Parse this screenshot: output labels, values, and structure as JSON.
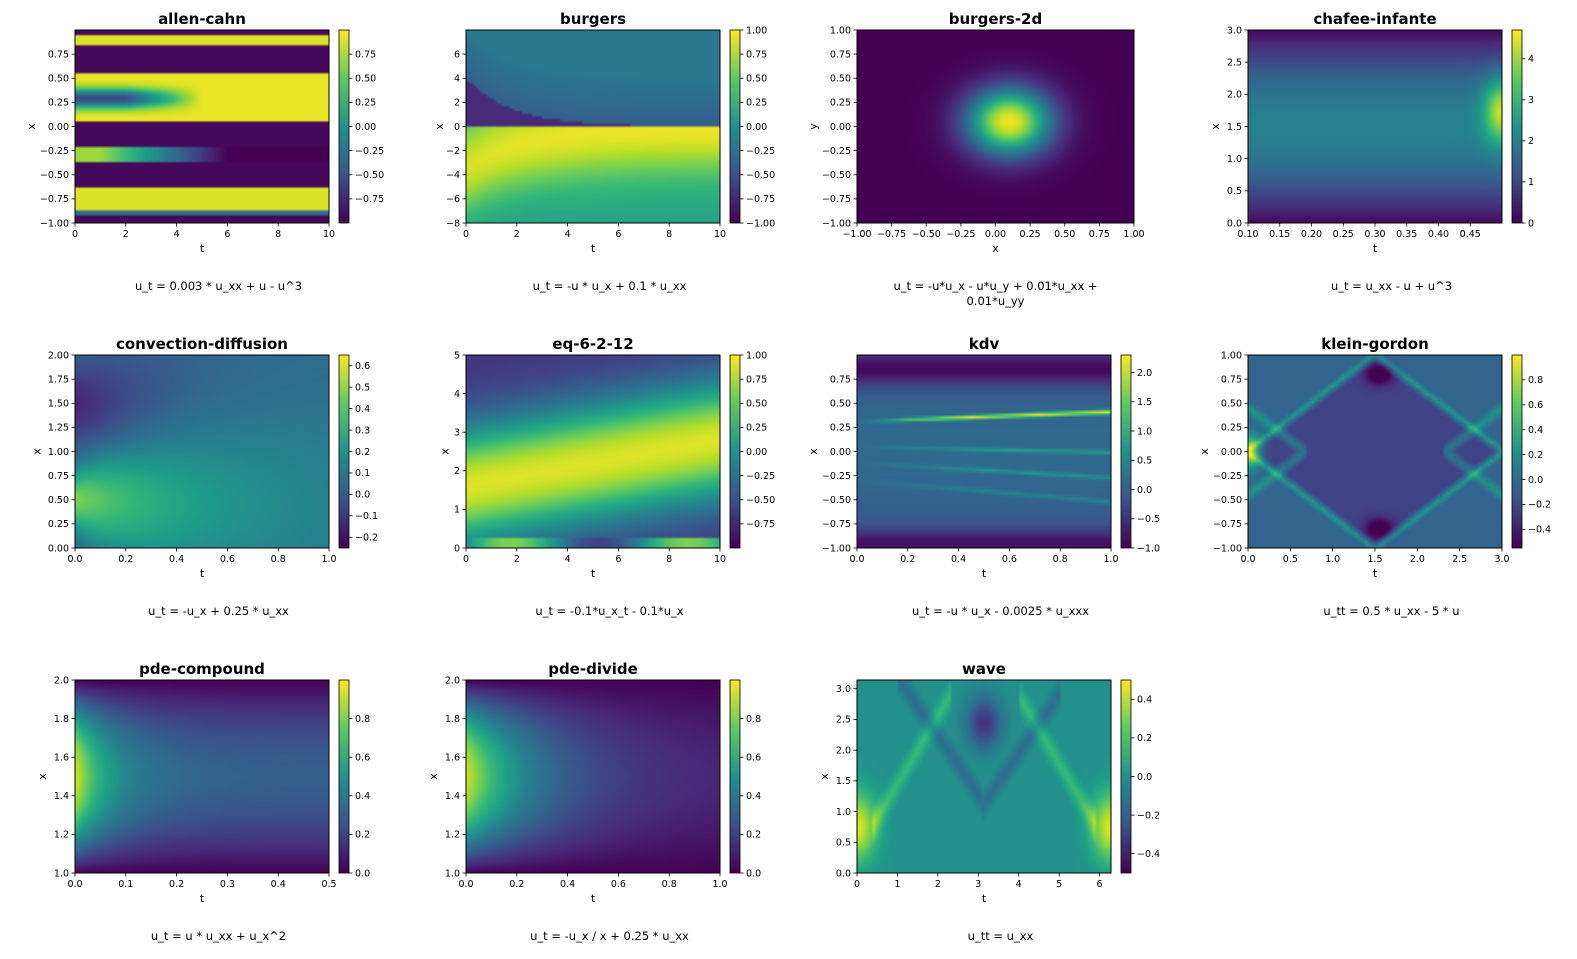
{
  "colormap": "viridis",
  "colors": {
    "viridis": [
      "#440154",
      "#3b528b",
      "#21918c",
      "#5ec962",
      "#fde725"
    ]
  },
  "chart_data": [
    {
      "type": "heatmap",
      "title": "allen-cahn",
      "xlabel": "t",
      "ylabel": "x",
      "xlim": [
        0,
        10
      ],
      "ylim": [
        -1,
        1
      ],
      "xticks": [
        "0",
        "2",
        "4",
        "6",
        "8",
        "10"
      ],
      "xtick_values": [
        0,
        2,
        4,
        6,
        8,
        10
      ],
      "yticks": [
        "−1.00",
        "−0.75",
        "−0.50",
        "−0.25",
        "0.00",
        "0.25",
        "0.50",
        "0.75"
      ],
      "ytick_values": [
        -1,
        -0.75,
        -0.5,
        -0.25,
        0,
        0.25,
        0.5,
        0.75
      ],
      "colorbar_ticks": [
        "−0.75",
        "−0.50",
        "−0.25",
        "0.00",
        "0.25",
        "0.50",
        "0.75"
      ],
      "colorbar_values": [
        -0.75,
        -0.5,
        -0.25,
        0,
        0.25,
        0.5,
        0.75
      ],
      "clim": [
        -1,
        1
      ],
      "equation": [
        "u_t = 0.003 * u_xx + u - u^3"
      ]
    },
    {
      "type": "heatmap",
      "title": "burgers",
      "xlabel": "t",
      "ylabel": "x",
      "xlim": [
        0,
        10
      ],
      "ylim": [
        -8,
        8
      ],
      "xticks": [
        "0",
        "2",
        "4",
        "6",
        "8",
        "10"
      ],
      "xtick_values": [
        0,
        2,
        4,
        6,
        8,
        10
      ],
      "yticks": [
        "−8",
        "−6",
        "−4",
        "−2",
        "0",
        "2",
        "4",
        "6"
      ],
      "ytick_values": [
        -8,
        -6,
        -4,
        -2,
        0,
        2,
        4,
        6
      ],
      "colorbar_ticks": [
        "−1.00",
        "−0.75",
        "−0.50",
        "−0.25",
        "0.00",
        "0.25",
        "0.50",
        "0.75",
        "1.00"
      ],
      "colorbar_values": [
        -1,
        -0.75,
        -0.5,
        -0.25,
        0,
        0.25,
        0.5,
        0.75,
        1
      ],
      "clim": [
        -1,
        1
      ],
      "equation": [
        "u_t = -u * u_x + 0.1 * u_xx"
      ]
    },
    {
      "type": "heatmap",
      "title": "burgers-2d",
      "xlabel": "x",
      "ylabel": "y",
      "xlim": [
        -1,
        1
      ],
      "ylim": [
        -1,
        1
      ],
      "xticks": [
        "−1.00",
        "−0.75",
        "−0.50",
        "−0.25",
        "0.00",
        "0.25",
        "0.50",
        "0.75",
        "1.00"
      ],
      "xtick_values": [
        -1,
        -0.75,
        -0.5,
        -0.25,
        0,
        0.25,
        0.5,
        0.75,
        1
      ],
      "yticks": [
        "−1.00",
        "−0.75",
        "−0.50",
        "−0.25",
        "0.00",
        "0.25",
        "0.50",
        "0.75",
        "1.00"
      ],
      "ytick_values": [
        -1,
        -0.75,
        -0.5,
        -0.25,
        0,
        0.25,
        0.5,
        0.75,
        1
      ],
      "colorbar_ticks": [],
      "colorbar_values": [],
      "clim": [
        0,
        1
      ],
      "equation": [
        "u_t = -u*u_x - u*u_y + 0.01*u_xx +",
        "0.01*u_yy"
      ]
    },
    {
      "type": "heatmap",
      "title": "chafee-infante",
      "xlabel": "t",
      "ylabel": "x",
      "xlim": [
        0.1,
        0.5
      ],
      "ylim": [
        0,
        3
      ],
      "xticks": [
        "0.10",
        "0.15",
        "0.20",
        "0.25",
        "0.30",
        "0.35",
        "0.40",
        "0.45"
      ],
      "xtick_values": [
        0.1,
        0.15,
        0.2,
        0.25,
        0.3,
        0.35,
        0.4,
        0.45
      ],
      "yticks": [
        "0.0",
        "0.5",
        "1.0",
        "1.5",
        "2.0",
        "2.5",
        "3.0"
      ],
      "ytick_values": [
        0,
        0.5,
        1,
        1.5,
        2,
        2.5,
        3
      ],
      "colorbar_ticks": [
        "0",
        "1",
        "2",
        "3",
        "4"
      ],
      "colorbar_values": [
        0,
        1,
        2,
        3,
        4
      ],
      "clim": [
        0,
        4.7
      ],
      "equation": [
        "u_t = u_xx - u + u^3"
      ]
    },
    {
      "type": "heatmap",
      "title": "convection-diffusion",
      "xlabel": "t",
      "ylabel": "x",
      "xlim": [
        0,
        1
      ],
      "ylim": [
        0,
        2
      ],
      "xticks": [
        "0.0",
        "0.2",
        "0.4",
        "0.6",
        "0.8",
        "1.0"
      ],
      "xtick_values": [
        0,
        0.2,
        0.4,
        0.6,
        0.8,
        1
      ],
      "yticks": [
        "0.00",
        "0.25",
        "0.50",
        "0.75",
        "1.00",
        "1.25",
        "1.50",
        "1.75",
        "2.00"
      ],
      "ytick_values": [
        0,
        0.25,
        0.5,
        0.75,
        1,
        1.25,
        1.5,
        1.75,
        2
      ],
      "colorbar_ticks": [
        "−0.2",
        "−0.1",
        "0.0",
        "0.1",
        "0.2",
        "0.3",
        "0.4",
        "0.5",
        "0.6"
      ],
      "colorbar_values": [
        -0.2,
        -0.1,
        0,
        0.1,
        0.2,
        0.3,
        0.4,
        0.5,
        0.6
      ],
      "clim": [
        -0.25,
        0.65
      ],
      "equation": [
        "u_t = -u_x + 0.25 * u_xx"
      ]
    },
    {
      "type": "heatmap",
      "title": "eq-6-2-12",
      "xlabel": "t",
      "ylabel": "x",
      "xlim": [
        0,
        10
      ],
      "ylim": [
        0,
        5
      ],
      "xticks": [
        "0",
        "2",
        "4",
        "6",
        "8",
        "10"
      ],
      "xtick_values": [
        0,
        2,
        4,
        6,
        8,
        10
      ],
      "yticks": [
        "0",
        "1",
        "2",
        "3",
        "4",
        "5"
      ],
      "ytick_values": [
        0,
        1,
        2,
        3,
        4,
        5
      ],
      "colorbar_ticks": [
        "−0.75",
        "−0.50",
        "−0.25",
        "0.00",
        "0.25",
        "0.50",
        "0.75",
        "1.00"
      ],
      "colorbar_values": [
        -0.75,
        -0.5,
        -0.25,
        0,
        0.25,
        0.5,
        0.75,
        1
      ],
      "clim": [
        -1,
        1
      ],
      "equation": [
        "u_t = -0.1*u_x_t - 0.1*u_x"
      ]
    },
    {
      "type": "heatmap",
      "title": "kdv",
      "xlabel": "t",
      "ylabel": "x",
      "xlim": [
        0,
        1
      ],
      "ylim": [
        -1,
        1
      ],
      "xticks": [
        "0.0",
        "0.2",
        "0.4",
        "0.6",
        "0.8",
        "1.0"
      ],
      "xtick_values": [
        0,
        0.2,
        0.4,
        0.6,
        0.8,
        1
      ],
      "yticks": [
        "−1.00",
        "−0.75",
        "−0.50",
        "−0.25",
        "0.00",
        "0.25",
        "0.50",
        "0.75"
      ],
      "ytick_values": [
        -1,
        -0.75,
        -0.5,
        -0.25,
        0,
        0.25,
        0.5,
        0.75
      ],
      "colorbar_ticks": [
        "−1.0",
        "−0.5",
        "0.0",
        "0.5",
        "1.0",
        "1.5",
        "2.0"
      ],
      "colorbar_values": [
        -1,
        -0.5,
        0,
        0.5,
        1,
        1.5,
        2
      ],
      "clim": [
        -1,
        2.3
      ],
      "equation": [
        "u_t = -u * u_x - 0.0025 * u_xxx"
      ]
    },
    {
      "type": "heatmap",
      "title": "klein-gordon",
      "xlabel": "t",
      "ylabel": "x",
      "xlim": [
        0,
        3
      ],
      "ylim": [
        -1,
        1
      ],
      "xticks": [
        "0.0",
        "0.5",
        "1.0",
        "1.5",
        "2.0",
        "2.5",
        "3.0"
      ],
      "xtick_values": [
        0,
        0.5,
        1,
        1.5,
        2,
        2.5,
        3
      ],
      "yticks": [
        "−1.00",
        "−0.75",
        "−0.50",
        "−0.25",
        "0.00",
        "0.25",
        "0.50",
        "0.75",
        "1.00"
      ],
      "ytick_values": [
        -1,
        -0.75,
        -0.5,
        -0.25,
        0,
        0.25,
        0.5,
        0.75,
        1
      ],
      "colorbar_ticks": [
        "−0.4",
        "−0.2",
        "0.0",
        "0.2",
        "0.4",
        "0.6",
        "0.8"
      ],
      "colorbar_values": [
        -0.4,
        -0.2,
        0,
        0.2,
        0.4,
        0.6,
        0.8
      ],
      "clim": [
        -0.55,
        1
      ],
      "equation": [
        "u_tt = 0.5 * u_xx - 5 * u"
      ]
    },
    {
      "type": "heatmap",
      "title": "pde-compound",
      "xlabel": "t",
      "ylabel": "x",
      "xlim": [
        0,
        0.5
      ],
      "ylim": [
        1,
        2
      ],
      "xticks": [
        "0.0",
        "0.1",
        "0.2",
        "0.3",
        "0.4",
        "0.5"
      ],
      "xtick_values": [
        0,
        0.1,
        0.2,
        0.3,
        0.4,
        0.5
      ],
      "yticks": [
        "1.0",
        "1.2",
        "1.4",
        "1.6",
        "1.8",
        "2.0"
      ],
      "ytick_values": [
        1,
        1.2,
        1.4,
        1.6,
        1.8,
        2
      ],
      "colorbar_ticks": [
        "0.0",
        "0.2",
        "0.4",
        "0.6",
        "0.8"
      ],
      "colorbar_values": [
        0,
        0.2,
        0.4,
        0.6,
        0.8
      ],
      "clim": [
        0,
        1
      ],
      "equation": [
        "u_t = u * u_xx + u_x^2"
      ]
    },
    {
      "type": "heatmap",
      "title": "pde-divide",
      "xlabel": "t",
      "ylabel": "x",
      "xlim": [
        0,
        1
      ],
      "ylim": [
        1,
        2
      ],
      "xticks": [
        "0.0",
        "0.2",
        "0.4",
        "0.6",
        "0.8",
        "1.0"
      ],
      "xtick_values": [
        0,
        0.2,
        0.4,
        0.6,
        0.8,
        1
      ],
      "yticks": [
        "1.0",
        "1.2",
        "1.4",
        "1.6",
        "1.8",
        "2.0"
      ],
      "ytick_values": [
        1,
        1.2,
        1.4,
        1.6,
        1.8,
        2
      ],
      "colorbar_ticks": [
        "0.0",
        "0.2",
        "0.4",
        "0.6",
        "0.8"
      ],
      "colorbar_values": [
        0,
        0.2,
        0.4,
        0.6,
        0.8
      ],
      "clim": [
        0,
        1
      ],
      "equation": [
        "u_t = -u_x / x + 0.25 * u_xx"
      ]
    },
    {
      "type": "heatmap",
      "title": "wave",
      "xlabel": "t",
      "ylabel": "x",
      "xlim": [
        0,
        6.283
      ],
      "ylim": [
        0,
        3.1416
      ],
      "xticks": [
        "0",
        "1",
        "2",
        "3",
        "4",
        "5",
        "6"
      ],
      "xtick_values": [
        0,
        1,
        2,
        3,
        4,
        5,
        6
      ],
      "yticks": [
        "0.0",
        "0.5",
        "1.0",
        "1.5",
        "2.0",
        "2.5",
        "3.0"
      ],
      "ytick_values": [
        0,
        0.5,
        1,
        1.5,
        2,
        2.5,
        3
      ],
      "colorbar_ticks": [
        "−0.4",
        "−0.2",
        "0.0",
        "0.2",
        "0.4"
      ],
      "colorbar_values": [
        -0.4,
        -0.2,
        0,
        0.2,
        0.4
      ],
      "clim": [
        -0.5,
        0.5
      ],
      "equation": [
        "u_tt = u_xx"
      ]
    }
  ]
}
